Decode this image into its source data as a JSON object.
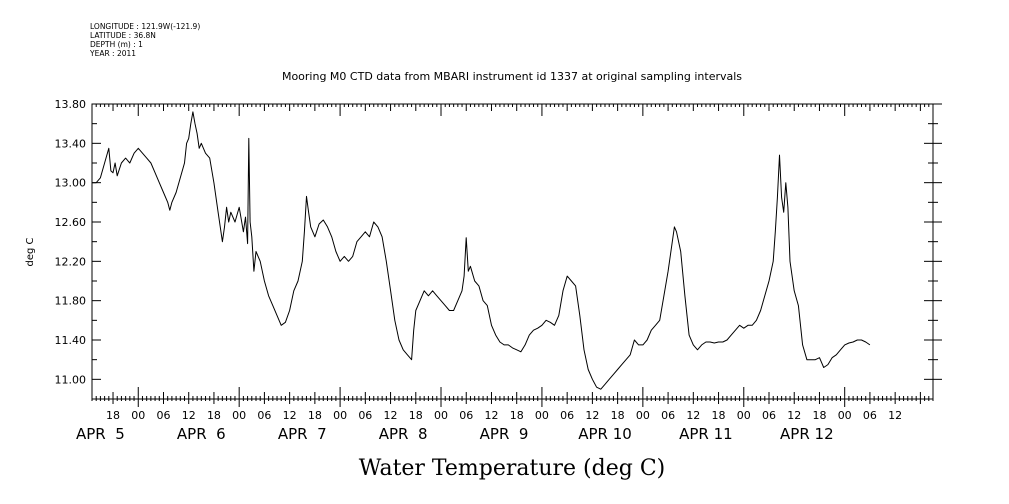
{
  "metadata": {
    "longitude": "LONGITUDE : 121.9W(-121.9)",
    "latitude": "LATITUDE : 36.8N",
    "depth": "DEPTH (m) : 1",
    "year": "YEAR : 2011"
  },
  "chart_data": {
    "type": "line",
    "title": "Mooring M0 CTD data from MBARI instrument id 1337 at original sampling intervals",
    "xlabel": "Water Temperature (deg C)",
    "ylabel": "deg C",
    "ylim": [
      10.8,
      13.8
    ],
    "yticks": [
      "11.00",
      "11.40",
      "11.80",
      "12.20",
      "12.60",
      "13.00",
      "13.40",
      "13.80"
    ],
    "xlim_hours": [
      13,
      213
    ],
    "hour_tick_labels": [
      "18",
      "00",
      "06",
      "12",
      "18",
      "00",
      "06",
      "12",
      "18",
      "00",
      "06",
      "12",
      "18",
      "00",
      "06",
      "12",
      "18",
      "00",
      "06",
      "12",
      "18",
      "00",
      "06",
      "12",
      "18",
      "00",
      "06",
      "12",
      "18",
      "00",
      "06",
      "12"
    ],
    "day_labels": [
      "APR  5",
      "APR  6",
      "APR  7",
      "APR  8",
      "APR  9",
      "APR 10",
      "APR 11",
      "APR 12"
    ],
    "x_unit": "hours since APR 5 00:00",
    "series": [
      {
        "name": "",
        "color": "#000000",
        "points": [
          [
            13,
            13.0
          ],
          [
            14,
            13.0
          ],
          [
            15,
            13.05
          ],
          [
            16,
            13.2
          ],
          [
            17,
            13.35
          ],
          [
            17.5,
            13.12
          ],
          [
            18,
            13.1
          ],
          [
            18.5,
            13.2
          ],
          [
            19,
            13.07
          ],
          [
            20,
            13.2
          ],
          [
            21,
            13.25
          ],
          [
            22,
            13.2
          ],
          [
            23,
            13.3
          ],
          [
            24,
            13.35
          ],
          [
            25,
            13.3
          ],
          [
            26,
            13.25
          ],
          [
            27,
            13.2
          ],
          [
            28,
            13.1
          ],
          [
            29,
            13.0
          ],
          [
            30,
            12.9
          ],
          [
            31,
            12.8
          ],
          [
            31.5,
            12.72
          ],
          [
            32,
            12.8
          ],
          [
            33,
            12.9
          ],
          [
            34,
            13.05
          ],
          [
            35,
            13.2
          ],
          [
            35.5,
            13.4
          ],
          [
            36,
            13.45
          ],
          [
            36.5,
            13.6
          ],
          [
            37,
            13.72
          ],
          [
            37.5,
            13.6
          ],
          [
            38,
            13.5
          ],
          [
            38.5,
            13.35
          ],
          [
            39,
            13.4
          ],
          [
            40,
            13.3
          ],
          [
            41,
            13.25
          ],
          [
            42,
            13.0
          ],
          [
            43,
            12.7
          ],
          [
            44,
            12.4
          ],
          [
            44.5,
            12.55
          ],
          [
            45,
            12.75
          ],
          [
            45.5,
            12.6
          ],
          [
            46,
            12.7
          ],
          [
            47,
            12.6
          ],
          [
            48,
            12.75
          ],
          [
            49,
            12.5
          ],
          [
            49.5,
            12.65
          ],
          [
            50,
            12.38
          ],
          [
            50.3,
            13.45
          ],
          [
            50.6,
            12.6
          ],
          [
            51,
            12.45
          ],
          [
            51.5,
            12.1
          ],
          [
            52,
            12.3
          ],
          [
            53,
            12.2
          ],
          [
            54,
            12.0
          ],
          [
            55,
            11.85
          ],
          [
            56,
            11.75
          ],
          [
            57,
            11.65
          ],
          [
            58,
            11.55
          ],
          [
            59,
            11.58
          ],
          [
            60,
            11.7
          ],
          [
            61,
            11.9
          ],
          [
            62,
            12.0
          ],
          [
            63,
            12.2
          ],
          [
            63.5,
            12.5
          ],
          [
            64,
            12.86
          ],
          [
            64.5,
            12.7
          ],
          [
            65,
            12.55
          ],
          [
            66,
            12.45
          ],
          [
            67,
            12.58
          ],
          [
            68,
            12.62
          ],
          [
            69,
            12.55
          ],
          [
            70,
            12.45
          ],
          [
            71,
            12.3
          ],
          [
            72,
            12.2
          ],
          [
            73,
            12.25
          ],
          [
            74,
            12.2
          ],
          [
            75,
            12.25
          ],
          [
            76,
            12.4
          ],
          [
            77,
            12.45
          ],
          [
            78,
            12.5
          ],
          [
            79,
            12.45
          ],
          [
            80,
            12.6
          ],
          [
            81,
            12.55
          ],
          [
            82,
            12.45
          ],
          [
            83,
            12.2
          ],
          [
            84,
            11.9
          ],
          [
            85,
            11.6
          ],
          [
            86,
            11.4
          ],
          [
            87,
            11.3
          ],
          [
            88,
            11.25
          ],
          [
            89,
            11.2
          ],
          [
            89.5,
            11.5
          ],
          [
            90,
            11.7
          ],
          [
            91,
            11.8
          ],
          [
            92,
            11.9
          ],
          [
            93,
            11.85
          ],
          [
            94,
            11.9
          ],
          [
            95,
            11.85
          ],
          [
            96,
            11.8
          ],
          [
            97,
            11.75
          ],
          [
            98,
            11.7
          ],
          [
            99,
            11.7
          ],
          [
            100,
            11.8
          ],
          [
            101,
            11.9
          ],
          [
            101.5,
            12.05
          ],
          [
            102,
            12.44
          ],
          [
            102.5,
            12.1
          ],
          [
            103,
            12.15
          ],
          [
            104,
            12.0
          ],
          [
            105,
            11.95
          ],
          [
            106,
            11.8
          ],
          [
            107,
            11.75
          ],
          [
            108,
            11.55
          ],
          [
            109,
            11.45
          ],
          [
            110,
            11.38
          ],
          [
            111,
            11.35
          ],
          [
            112,
            11.35
          ],
          [
            113,
            11.32
          ],
          [
            114,
            11.3
          ],
          [
            115,
            11.28
          ],
          [
            116,
            11.35
          ],
          [
            117,
            11.45
          ],
          [
            118,
            11.5
          ],
          [
            119,
            11.52
          ],
          [
            120,
            11.55
          ],
          [
            121,
            11.6
          ],
          [
            122,
            11.58
          ],
          [
            123,
            11.55
          ],
          [
            124,
            11.65
          ],
          [
            125,
            11.9
          ],
          [
            126,
            12.05
          ],
          [
            127,
            12.0
          ],
          [
            128,
            11.95
          ],
          [
            129,
            11.65
          ],
          [
            130,
            11.3
          ],
          [
            131,
            11.1
          ],
          [
            132,
            11.0
          ],
          [
            133,
            10.92
          ],
          [
            134,
            10.9
          ],
          [
            135,
            10.95
          ],
          [
            136,
            11.0
          ],
          [
            137,
            11.05
          ],
          [
            138,
            11.1
          ],
          [
            139,
            11.15
          ],
          [
            140,
            11.2
          ],
          [
            141,
            11.25
          ],
          [
            142,
            11.4
          ],
          [
            143,
            11.35
          ],
          [
            144,
            11.35
          ],
          [
            145,
            11.4
          ],
          [
            146,
            11.5
          ],
          [
            147,
            11.55
          ],
          [
            148,
            11.6
          ],
          [
            149,
            11.85
          ],
          [
            150,
            12.1
          ],
          [
            151,
            12.4
          ],
          [
            151.5,
            12.55
          ],
          [
            152,
            12.5
          ],
          [
            153,
            12.3
          ],
          [
            154,
            11.85
          ],
          [
            155,
            11.45
          ],
          [
            156,
            11.35
          ],
          [
            157,
            11.3
          ],
          [
            158,
            11.35
          ],
          [
            159,
            11.38
          ],
          [
            160,
            11.38
          ],
          [
            161,
            11.37
          ],
          [
            162,
            11.38
          ],
          [
            163,
            11.38
          ],
          [
            164,
            11.4
          ],
          [
            165,
            11.45
          ],
          [
            166,
            11.5
          ],
          [
            167,
            11.55
          ],
          [
            168,
            11.52
          ],
          [
            169,
            11.55
          ],
          [
            170,
            11.55
          ],
          [
            171,
            11.6
          ],
          [
            172,
            11.7
          ],
          [
            173,
            11.85
          ],
          [
            174,
            12.0
          ],
          [
            175,
            12.2
          ],
          [
            175.5,
            12.5
          ],
          [
            176,
            12.85
          ],
          [
            176.5,
            13.28
          ],
          [
            177,
            12.85
          ],
          [
            177.5,
            12.7
          ],
          [
            178,
            13.0
          ],
          [
            178.5,
            12.75
          ],
          [
            179,
            12.2
          ],
          [
            180,
            11.9
          ],
          [
            181,
            11.75
          ],
          [
            182,
            11.35
          ],
          [
            183,
            11.2
          ],
          [
            184,
            11.2
          ],
          [
            185,
            11.2
          ],
          [
            186,
            11.22
          ],
          [
            187,
            11.12
          ],
          [
            188,
            11.15
          ],
          [
            189,
            11.22
          ],
          [
            190,
            11.25
          ],
          [
            191,
            11.3
          ],
          [
            192,
            11.35
          ],
          [
            193,
            11.37
          ],
          [
            194,
            11.38
          ],
          [
            195,
            11.4
          ],
          [
            196,
            11.4
          ],
          [
            197,
            11.38
          ],
          [
            198,
            11.35
          ]
        ]
      }
    ]
  }
}
